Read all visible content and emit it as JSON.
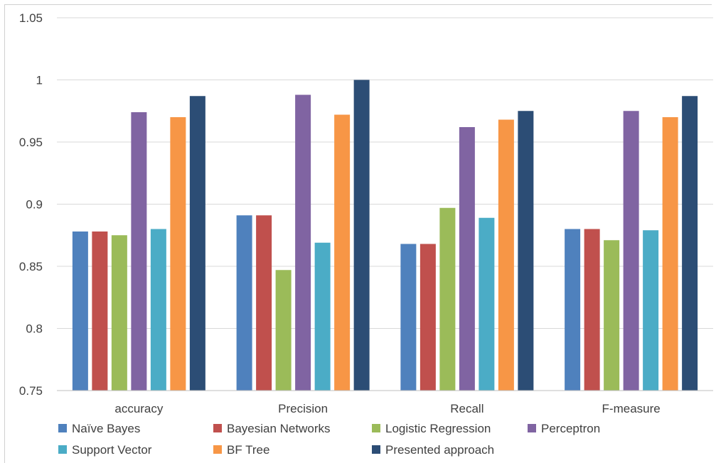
{
  "chart_data": {
    "type": "bar",
    "categories": [
      "accuracy",
      "Precision",
      "Recall",
      "F-measure"
    ],
    "series": [
      {
        "name": "Naïve Bayes",
        "color": "#4f81bd",
        "values": [
          0.878,
          0.891,
          0.868,
          0.88
        ]
      },
      {
        "name": "Bayesian Networks",
        "color": "#c0504d",
        "values": [
          0.878,
          0.891,
          0.868,
          0.88
        ]
      },
      {
        "name": "Logistic Regression",
        "color": "#9bbb59",
        "values": [
          0.875,
          0.847,
          0.897,
          0.871
        ]
      },
      {
        "name": "Perceptron",
        "color": "#8064a2",
        "values": [
          0.974,
          0.988,
          0.962,
          0.975
        ]
      },
      {
        "name": "Support Vector",
        "color": "#4bacc6",
        "values": [
          0.88,
          0.869,
          0.889,
          0.879
        ]
      },
      {
        "name": "BF Tree",
        "color": "#f79646",
        "values": [
          0.97,
          0.972,
          0.968,
          0.97
        ]
      },
      {
        "name": "Presented approach",
        "color": "#2c4d75",
        "values": [
          0.987,
          1.0,
          0.975,
          0.987
        ]
      }
    ],
    "yticks": [
      "0.75",
      "0.8",
      "0.85",
      "0.9",
      "0.95",
      "1",
      "1.05"
    ],
    "ylim": [
      0.75,
      1.05
    ],
    "grid": true,
    "legend_position": "bottom",
    "title": "",
    "xlabel": "",
    "ylabel": ""
  }
}
